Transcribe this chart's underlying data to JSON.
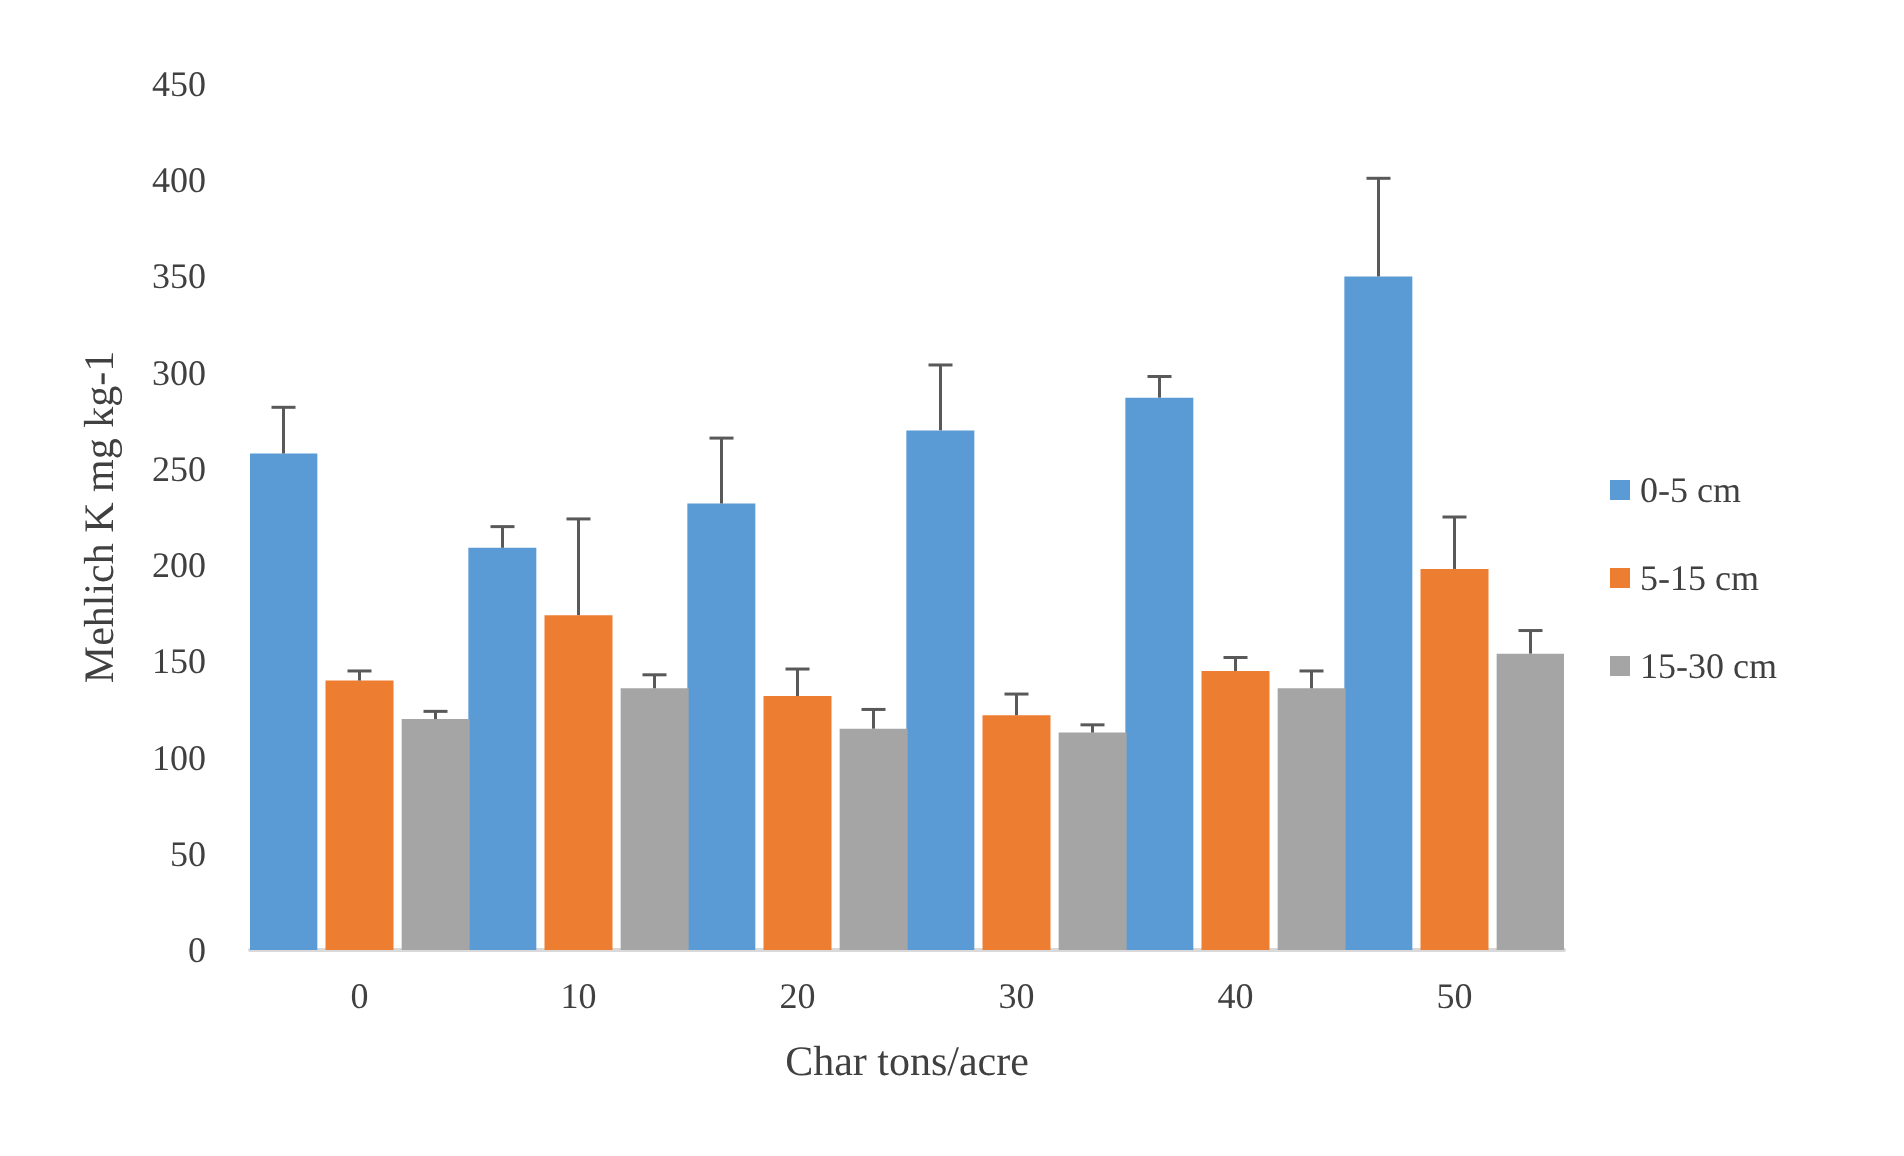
{
  "chart_data": {
    "type": "bar",
    "xlabel": "Char tons/acre",
    "ylabel": "Mehlich K mg kg-1",
    "categories": [
      "0",
      "10",
      "20",
      "30",
      "40",
      "50"
    ],
    "series": [
      {
        "name": "0-5 cm",
        "color": "#5b9bd5",
        "values": [
          258,
          209,
          232,
          270,
          287,
          350
        ],
        "errors": [
          [
            258,
            282
          ],
          [
            209,
            220
          ],
          [
            232,
            266
          ],
          [
            270,
            304
          ],
          [
            287,
            298
          ],
          [
            350,
            401
          ]
        ]
      },
      {
        "name": "5-15 cm",
        "color": "#ed7d31",
        "values": [
          140,
          174,
          132,
          122,
          145,
          198
        ],
        "errors": [
          [
            140,
            145
          ],
          [
            174,
            224
          ],
          [
            132,
            146
          ],
          [
            122,
            133
          ],
          [
            145,
            152
          ],
          [
            198,
            225
          ]
        ]
      },
      {
        "name": "15-30 cm",
        "color": "#a5a5a5",
        "values": [
          120,
          136,
          115,
          113,
          136,
          154
        ],
        "errors": [
          [
            120,
            124
          ],
          [
            136,
            143
          ],
          [
            115,
            125
          ],
          [
            113,
            117
          ],
          [
            136,
            145
          ],
          [
            154,
            166
          ]
        ]
      }
    ],
    "ylim": [
      0,
      450
    ],
    "yticks": [
      0,
      50,
      100,
      150,
      200,
      250,
      300,
      350,
      400,
      450
    ],
    "grid": false,
    "legend": "right"
  }
}
